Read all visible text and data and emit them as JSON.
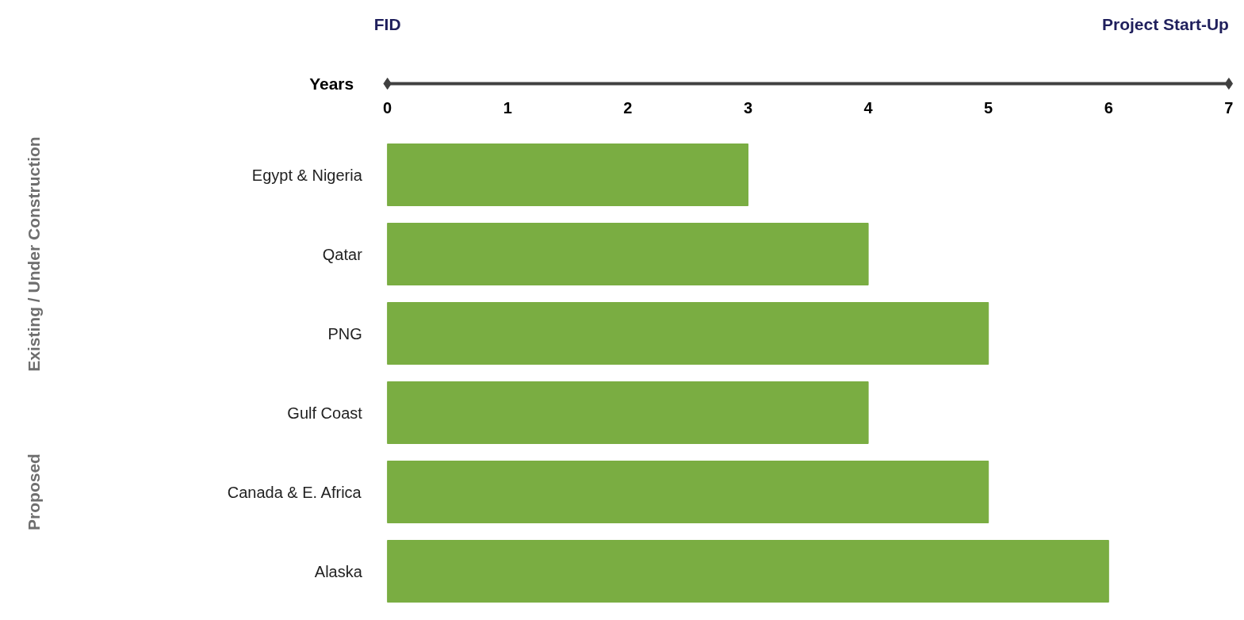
{
  "chart_data": {
    "type": "bar",
    "orientation": "horizontal",
    "xlabel": "Years",
    "categories": [
      "Egypt & Nigeria",
      "Qatar",
      "PNG",
      "Gulf Coast",
      "Canada & E. Africa",
      "Alaska"
    ],
    "values": [
      3,
      4,
      5,
      4,
      5,
      6
    ],
    "color": "#7aad42",
    "xlim": [
      0,
      7
    ],
    "xticks": [
      0,
      1,
      2,
      3,
      4,
      5,
      6,
      7
    ],
    "grid": false,
    "annotations": [
      "FID",
      "Project Start-Up",
      "Existing / Under Construction",
      "Proposed"
    ]
  }
}
